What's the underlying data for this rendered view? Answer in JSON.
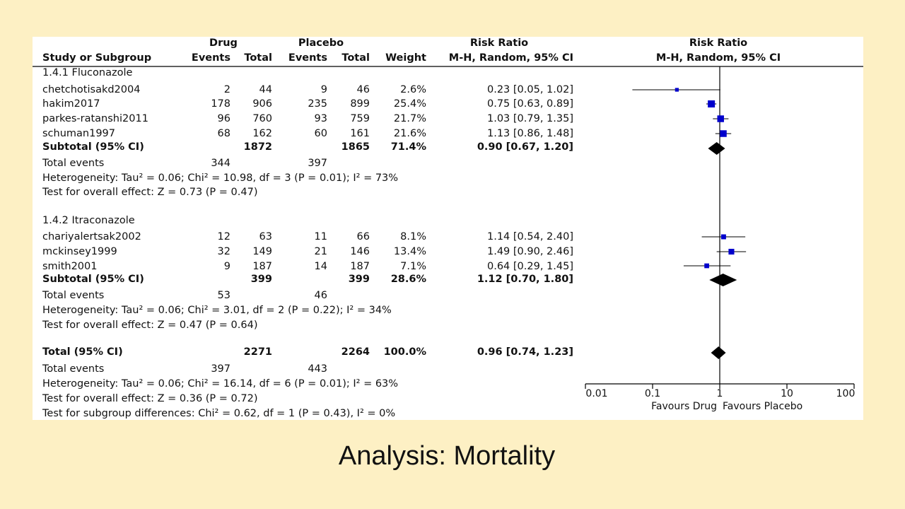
{
  "caption": "Analysis: Mortality",
  "header": {
    "drug": "Drug",
    "placebo": "Placebo",
    "risk_ratio": "Risk Ratio",
    "risk_ratio_plot": "Risk Ratio",
    "study_or_subgroup": "Study or Subgroup",
    "events1": "Events",
    "total1": "Total",
    "events2": "Events",
    "total2": "Total",
    "weight": "Weight",
    "method": "M-H, Random, 95% CI",
    "method_plot": "M-H, Random, 95% CI"
  },
  "groups": [
    {
      "title": "1.4.1 Fluconazole",
      "studies": [
        {
          "name": "chetchotisakd2004",
          "e1": "2",
          "t1": "44",
          "e2": "9",
          "t2": "46",
          "weight": "2.6%",
          "ci_text": "0.23 [0.05, 1.02]"
        },
        {
          "name": "hakim2017",
          "e1": "178",
          "t1": "906",
          "e2": "235",
          "t2": "899",
          "weight": "25.4%",
          "ci_text": "0.75 [0.63, 0.89]"
        },
        {
          "name": "parkes-ratanshi2011",
          "e1": "96",
          "t1": "760",
          "e2": "93",
          "t2": "759",
          "weight": "21.7%",
          "ci_text": "1.03 [0.79, 1.35]"
        },
        {
          "name": "schuman1997",
          "e1": "68",
          "t1": "162",
          "e2": "60",
          "t2": "161",
          "weight": "21.6%",
          "ci_text": "1.13 [0.86, 1.48]"
        }
      ],
      "subtotal": {
        "label": "Subtotal (95% CI)",
        "t1": "1872",
        "t2": "1865",
        "weight": "71.4%",
        "ci_text": "0.90 [0.67, 1.20]"
      },
      "total_events": {
        "label": "Total events",
        "e1": "344",
        "e2": "397"
      },
      "heterogeneity": "Heterogeneity: Tau² = 0.06; Chi² = 10.98, df = 3 (P = 0.01); I² = 73%",
      "overall_effect": "Test for overall effect: Z = 0.73 (P = 0.47)"
    },
    {
      "title": "1.4.2 Itraconazole",
      "studies": [
        {
          "name": "chariyalertsak2002",
          "e1": "12",
          "t1": "63",
          "e2": "11",
          "t2": "66",
          "weight": "8.1%",
          "ci_text": "1.14 [0.54, 2.40]"
        },
        {
          "name": "mckinsey1999",
          "e1": "32",
          "t1": "149",
          "e2": "21",
          "t2": "146",
          "weight": "13.4%",
          "ci_text": "1.49 [0.90, 2.46]"
        },
        {
          "name": "smith2001",
          "e1": "9",
          "t1": "187",
          "e2": "14",
          "t2": "187",
          "weight": "7.1%",
          "ci_text": "0.64 [0.29, 1.45]"
        }
      ],
      "subtotal": {
        "label": "Subtotal (95% CI)",
        "t1": "399",
        "t2": "399",
        "weight": "28.6%",
        "ci_text": "1.12 [0.70, 1.80]"
      },
      "total_events": {
        "label": "Total events",
        "e1": "53",
        "e2": "46"
      },
      "heterogeneity": "Heterogeneity: Tau² = 0.06; Chi² = 3.01, df = 2 (P = 0.22); I² = 34%",
      "overall_effect": "Test for overall effect: Z = 0.47 (P = 0.64)"
    }
  ],
  "total": {
    "label": "Total (95% CI)",
    "t1": "2271",
    "t2": "2264",
    "weight": "100.0%",
    "ci_text": "0.96 [0.74, 1.23]"
  },
  "total_events": {
    "label": "Total events",
    "e1": "397",
    "e2": "443"
  },
  "heterogeneity": "Heterogeneity: Tau² = 0.06; Chi² = 16.14, df = 6 (P = 0.01); I² = 63%",
  "overall_effect": "Test for overall effect: Z = 0.36 (P = 0.72)",
  "subgroup_diff": "Test for subgroup differences: Chi² = 0.62, df = 1 (P = 0.43), I² = 0%",
  "axis": {
    "favours_left": "Favours Drug",
    "favours_right": "Favours Placebo"
  },
  "colors": {
    "background": "#fdf0c4",
    "marker": "#0000cc",
    "diamond": "#000000"
  },
  "chart_data": {
    "type": "scatter",
    "scale": "log",
    "xlim": [
      0.01,
      100
    ],
    "ticks": [
      {
        "v": 0.01,
        "label": "0.01"
      },
      {
        "v": 0.1,
        "label": "0.1"
      },
      {
        "v": 1,
        "label": "1"
      },
      {
        "v": 10,
        "label": "10"
      },
      {
        "v": 100,
        "label": "100"
      }
    ],
    "studies": [
      {
        "name": "chetchotisakd2004",
        "rr": 0.23,
        "lo": 0.05,
        "hi": 1.02,
        "weight": 2.6
      },
      {
        "name": "hakim2017",
        "rr": 0.75,
        "lo": 0.63,
        "hi": 0.89,
        "weight": 25.4
      },
      {
        "name": "parkes-ratanshi2011",
        "rr": 1.03,
        "lo": 0.79,
        "hi": 1.35,
        "weight": 21.7
      },
      {
        "name": "schuman1997",
        "rr": 1.13,
        "lo": 0.86,
        "hi": 1.48,
        "weight": 21.6
      },
      {
        "name": "chariyalertsak2002",
        "rr": 1.14,
        "lo": 0.54,
        "hi": 2.4,
        "weight": 8.1
      },
      {
        "name": "mckinsey1999",
        "rr": 1.49,
        "lo": 0.9,
        "hi": 2.46,
        "weight": 13.4
      },
      {
        "name": "smith2001",
        "rr": 0.64,
        "lo": 0.29,
        "hi": 1.45,
        "weight": 7.1
      }
    ],
    "pooled": [
      {
        "name": "Subtotal 1.4.1",
        "rr": 0.9,
        "lo": 0.67,
        "hi": 1.2
      },
      {
        "name": "Subtotal 1.4.2",
        "rr": 1.12,
        "lo": 0.7,
        "hi": 1.8
      },
      {
        "name": "Total",
        "rr": 0.96,
        "lo": 0.74,
        "hi": 1.23
      }
    ]
  }
}
